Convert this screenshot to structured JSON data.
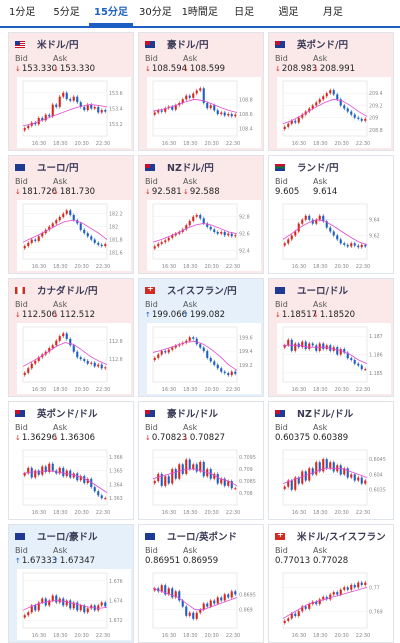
{
  "tabs": [
    {
      "label": "1分足",
      "active": false
    },
    {
      "label": "5分足",
      "active": false
    },
    {
      "label": "15分足",
      "active": true
    },
    {
      "label": "30分足",
      "active": false
    },
    {
      "label": "1時間足",
      "active": false
    },
    {
      "label": "日足",
      "active": false
    },
    {
      "label": "週足",
      "active": false
    },
    {
      "label": "月足",
      "active": false
    }
  ],
  "labels": {
    "bid": "Bid",
    "ask": "Ask"
  },
  "colors": {
    "up": "#d9261c",
    "down": "#1e5fc4",
    "ma": "#e04bd3",
    "axis": "#888888",
    "accent": "#1e5fc4"
  },
  "cards": [
    {
      "name": "米ドル/円",
      "flag": "us",
      "tint": "red",
      "bid": "153.330",
      "ask": "153.330",
      "bid_dir": "down",
      "ask_dir": "down",
      "chart_data": {
        "type": "candlestick",
        "x_ticks": [
          "16:30",
          "18:30",
          "20:30",
          "22:30"
        ],
        "y_ticks": [
          "153.6",
          "153.4",
          "153.2"
        ],
        "ylim": [
          153.05,
          153.75
        ],
        "closes": [
          153.15,
          153.18,
          153.22,
          153.2,
          153.28,
          153.25,
          153.32,
          153.3,
          153.45,
          153.42,
          153.55,
          153.6,
          153.52,
          153.5,
          153.55,
          153.48,
          153.42,
          153.38,
          153.45,
          153.4,
          153.42,
          153.35,
          153.38,
          153.36
        ],
        "ma": [
          153.18,
          153.2,
          153.24,
          153.28,
          153.32,
          153.36,
          153.4,
          153.43,
          153.45,
          153.44,
          153.42
        ]
      }
    },
    {
      "name": "豪ドル/円",
      "flag": "au",
      "tint": "red",
      "bid": "108.594",
      "ask": "108.599",
      "bid_dir": "down",
      "ask_dir": "down",
      "chart_data": {
        "type": "candlestick",
        "x_ticks": [
          "16:30",
          "18:30",
          "20:30",
          "22:30"
        ],
        "y_ticks": [
          "108.8",
          "108.6",
          "108.4"
        ],
        "ylim": [
          108.3,
          109.05
        ],
        "closes": [
          108.62,
          108.65,
          108.63,
          108.68,
          108.7,
          108.66,
          108.72,
          108.75,
          108.8,
          108.85,
          108.82,
          108.88,
          108.92,
          108.95,
          108.75,
          108.68,
          108.72,
          108.65,
          108.6,
          108.62,
          108.58,
          108.6,
          108.57,
          108.59
        ],
        "ma": [
          108.64,
          108.66,
          108.69,
          108.73,
          108.77,
          108.8,
          108.78,
          108.74,
          108.69,
          108.65,
          108.62
        ]
      }
    },
    {
      "name": "英ポンド/円",
      "flag": "gb",
      "tint": "red",
      "bid": "208.983",
      "ask": "208.991",
      "bid_dir": "down",
      "ask_dir": "down",
      "chart_data": {
        "type": "candlestick",
        "x_ticks": [
          "16:30",
          "18:30",
          "20:30",
          "22:30"
        ],
        "y_ticks": [
          "209.4",
          "209.2",
          "209",
          "208.8"
        ],
        "ylim": [
          208.7,
          209.6
        ],
        "closes": [
          208.85,
          208.9,
          208.95,
          208.92,
          209.0,
          209.05,
          209.1,
          209.15,
          209.2,
          209.25,
          209.3,
          209.35,
          209.4,
          209.45,
          209.38,
          209.3,
          209.2,
          209.15,
          209.1,
          209.05,
          209.0,
          208.98,
          208.95,
          208.98
        ],
        "ma": [
          208.9,
          208.95,
          209.02,
          209.1,
          209.18,
          209.25,
          209.3,
          209.28,
          209.2,
          209.1,
          209.02
        ]
      }
    },
    {
      "name": "ユーロ/円",
      "flag": "eu",
      "tint": "red",
      "bid": "181.726",
      "ask": "181.730",
      "bid_dir": "down",
      "ask_dir": "down",
      "chart_data": {
        "type": "candlestick",
        "x_ticks": [
          "16:30",
          "18:30",
          "20:30",
          "22:30"
        ],
        "y_ticks": [
          "182.2",
          "182",
          "181.8",
          "181.6"
        ],
        "ylim": [
          181.5,
          182.35
        ],
        "closes": [
          181.7,
          181.75,
          181.8,
          181.78,
          181.85,
          181.9,
          181.95,
          182.0,
          182.05,
          182.1,
          182.15,
          182.2,
          182.25,
          182.18,
          182.1,
          182.05,
          181.95,
          181.9,
          181.85,
          181.8,
          181.75,
          181.72,
          181.7,
          181.73
        ],
        "ma": [
          181.76,
          181.82,
          181.88,
          181.95,
          182.02,
          182.08,
          182.1,
          182.06,
          181.98,
          181.9,
          181.8
        ]
      }
    },
    {
      "name": "NZドル/円",
      "flag": "nz",
      "tint": "red",
      "bid": "92.581",
      "ask": "92.588",
      "bid_dir": "down",
      "ask_dir": "down",
      "chart_data": {
        "type": "candlestick",
        "x_ticks": [
          "16:30",
          "18:30",
          "20:30",
          "22:30"
        ],
        "y_ticks": [
          "92.8",
          "92.6",
          "92.4"
        ],
        "ylim": [
          92.3,
          92.95
        ],
        "closes": [
          92.45,
          92.48,
          92.5,
          92.52,
          92.55,
          92.58,
          92.6,
          92.62,
          92.65,
          92.7,
          92.75,
          92.8,
          92.82,
          92.78,
          92.72,
          92.68,
          92.65,
          92.62,
          92.6,
          92.62,
          92.58,
          92.6,
          92.57,
          92.58
        ],
        "ma": [
          92.5,
          92.53,
          92.57,
          92.61,
          92.66,
          92.7,
          92.72,
          92.7,
          92.66,
          92.62,
          92.6
        ]
      }
    },
    {
      "name": "ランド/円",
      "flag": "za",
      "tint": "plain",
      "bid": "9.605",
      "ask": "9.614",
      "bid_dir": "none",
      "ask_dir": "none",
      "chart_data": {
        "type": "candlestick",
        "x_ticks": [
          "16:30",
          "18:30",
          "20:30",
          "22:30"
        ],
        "y_ticks": [
          "9.64",
          "9.62"
        ],
        "ylim": [
          9.59,
          9.66
        ],
        "closes": [
          9.61,
          9.615,
          9.62,
          9.625,
          9.635,
          9.64,
          9.645,
          9.64,
          9.635,
          9.64,
          9.645,
          9.638,
          9.63,
          9.625,
          9.62,
          9.615,
          9.61,
          9.608,
          9.606,
          9.61,
          9.607,
          9.605,
          9.608,
          9.606
        ],
        "ma": [
          9.615,
          9.622,
          9.63,
          9.636,
          9.64,
          9.638,
          9.632,
          9.625,
          9.618,
          9.612,
          9.608
        ]
      }
    },
    {
      "name": "カナダドル/円",
      "flag": "ca",
      "tint": "red",
      "bid": "112.506",
      "ask": "112.512",
      "bid_dir": "down",
      "ask_dir": "down",
      "chart_data": {
        "type": "candlestick",
        "x_ticks": [
          "16:30",
          "18:30",
          "20:30",
          "22:30"
        ],
        "y_ticks": [
          "112.8",
          "112.6"
        ],
        "ylim": [
          112.35,
          112.95
        ],
        "closes": [
          112.45,
          112.5,
          112.55,
          112.58,
          112.62,
          112.65,
          112.68,
          112.72,
          112.75,
          112.8,
          112.85,
          112.88,
          112.82,
          112.75,
          112.68,
          112.62,
          112.6,
          112.58,
          112.55,
          112.56,
          112.52,
          112.54,
          112.5,
          112.51
        ],
        "ma": [
          112.52,
          112.57,
          112.62,
          112.68,
          112.74,
          112.78,
          112.76,
          112.7,
          112.63,
          112.58,
          112.54
        ]
      }
    },
    {
      "name": "スイスフラン/円",
      "flag": "ch",
      "tint": "blue",
      "bid": "199.066",
      "ask": "199.082",
      "bid_dir": "up",
      "ask_dir": "up",
      "chart_data": {
        "type": "candlestick",
        "x_ticks": [
          "16:30",
          "18:30",
          "20:30",
          "22:30"
        ],
        "y_ticks": [
          "199.6",
          "199.4",
          "199.2"
        ],
        "ylim": [
          198.95,
          199.75
        ],
        "closes": [
          199.3,
          199.35,
          199.4,
          199.38,
          199.42,
          199.45,
          199.48,
          199.5,
          199.52,
          199.55,
          199.6,
          199.58,
          199.5,
          199.45,
          199.4,
          199.3,
          199.25,
          199.2,
          199.15,
          199.1,
          199.08,
          199.05,
          199.1,
          199.07
        ],
        "ma": [
          199.38,
          199.41,
          199.45,
          199.49,
          199.53,
          199.54,
          199.5,
          199.42,
          199.32,
          199.2,
          199.12
        ]
      }
    },
    {
      "name": "ユーロ/ドル",
      "flag": "eu",
      "tint": "red",
      "bid": "1.18517",
      "ask": "1.18520",
      "bid_dir": "down",
      "ask_dir": "down",
      "chart_data": {
        "type": "candlestick",
        "x_ticks": [
          "16:30",
          "18:30",
          "20:30",
          "22:30"
        ],
        "y_ticks": [
          "1.187",
          "1.186",
          "1.185"
        ],
        "ylim": [
          1.1845,
          1.1875
        ],
        "closes": [
          1.1865,
          1.1868,
          1.1862,
          1.1866,
          1.1864,
          1.1867,
          1.1863,
          1.1866,
          1.1865,
          1.1862,
          1.1866,
          1.1863,
          1.1865,
          1.1862,
          1.1864,
          1.186,
          1.1863,
          1.1861,
          1.1858,
          1.1857,
          1.1855,
          1.1854,
          1.1852,
          1.1852
        ],
        "ma": [
          1.1865,
          1.1865,
          1.1865,
          1.1864,
          1.1864,
          1.1864,
          1.1863,
          1.1862,
          1.186,
          1.1857,
          1.1855
        ]
      }
    },
    {
      "name": "英ポンド/ドル",
      "flag": "gb",
      "tint": "plain",
      "bid": "1.36296",
      "ask": "1.36306",
      "bid_dir": "down",
      "ask_dir": "down",
      "chart_data": {
        "type": "candlestick",
        "x_ticks": [
          "16:30",
          "18:30",
          "20:30",
          "22:30"
        ],
        "y_ticks": [
          "1.366",
          "1.365",
          "1.364",
          "1.363"
        ],
        "ylim": [
          1.3625,
          1.3665
        ],
        "closes": [
          1.3648,
          1.3652,
          1.3645,
          1.365,
          1.3647,
          1.3653,
          1.3649,
          1.3655,
          1.365,
          1.3648,
          1.3652,
          1.3646,
          1.365,
          1.3645,
          1.3648,
          1.3643,
          1.3646,
          1.3641,
          1.3644,
          1.3638,
          1.3635,
          1.3632,
          1.363,
          1.363
        ],
        "ma": [
          1.3648,
          1.3649,
          1.3649,
          1.365,
          1.3649,
          1.3648,
          1.3647,
          1.3645,
          1.3642,
          1.3638,
          1.3634
        ]
      }
    },
    {
      "name": "豪ドル/ドル",
      "flag": "au",
      "tint": "plain",
      "bid": "0.70823",
      "ask": "0.70827",
      "bid_dir": "down",
      "ask_dir": "down",
      "chart_data": {
        "type": "candlestick",
        "x_ticks": [
          "16:30",
          "18:30",
          "20:30",
          "22:30"
        ],
        "y_ticks": [
          "0.7095",
          "0.709",
          "0.7085",
          "0.708"
        ],
        "ylim": [
          0.7075,
          0.7098
        ],
        "closes": [
          0.7085,
          0.7088,
          0.7083,
          0.7087,
          0.7084,
          0.709,
          0.7086,
          0.7092,
          0.7088,
          0.7094,
          0.709,
          0.7092,
          0.7089,
          0.7093,
          0.7087,
          0.709,
          0.7086,
          0.7088,
          0.7084,
          0.7086,
          0.7083,
          0.7085,
          0.7082,
          0.7082
        ],
        "ma": [
          0.7086,
          0.7087,
          0.7088,
          0.7089,
          0.709,
          0.709,
          0.7089,
          0.7088,
          0.7086,
          0.7085,
          0.7083
        ]
      }
    },
    {
      "name": "NZドル/ドル",
      "flag": "nz",
      "tint": "plain",
      "bid": "0.60375",
      "ask": "0.60389",
      "bid_dir": "none",
      "ask_dir": "none",
      "chart_data": {
        "type": "candlestick",
        "x_ticks": [
          "16:30",
          "18:30",
          "20:30",
          "22:30"
        ],
        "y_ticks": [
          "0.6045",
          "0.604",
          "0.6035"
        ],
        "ylim": [
          0.603,
          0.6048
        ],
        "closes": [
          0.6036,
          0.6038,
          0.6035,
          0.6039,
          0.6037,
          0.6041,
          0.6038,
          0.6042,
          0.604,
          0.6044,
          0.6041,
          0.6045,
          0.6042,
          0.6044,
          0.6041,
          0.6043,
          0.604,
          0.6042,
          0.6039,
          0.604,
          0.6038,
          0.6039,
          0.6037,
          0.6038
        ],
        "ma": [
          0.6037,
          0.6038,
          0.6039,
          0.604,
          0.6041,
          0.6042,
          0.6042,
          0.6042,
          0.6041,
          0.604,
          0.6039
        ]
      }
    },
    {
      "name": "ユーロ/豪ドル",
      "flag": "eu",
      "tint": "blue",
      "bid": "1.67333",
      "ask": "1.67347",
      "bid_dir": "up",
      "ask_dir": "up",
      "chart_data": {
        "type": "candlestick",
        "x_ticks": [
          "16:30",
          "18:30",
          "20:30",
          "22:30"
        ],
        "y_ticks": [
          "1.676",
          "1.674",
          "1.672"
        ],
        "ylim": [
          1.6712,
          1.6768
        ],
        "closes": [
          1.6725,
          1.6728,
          1.6735,
          1.673,
          1.6738,
          1.6742,
          1.6735,
          1.674,
          1.6745,
          1.6738,
          1.6742,
          1.6735,
          1.674,
          1.6732,
          1.6738,
          1.673,
          1.6735,
          1.6728,
          1.6732,
          1.6735,
          1.673,
          1.6735,
          1.6738,
          1.6734
        ],
        "ma": [
          1.673,
          1.6734,
          1.6737,
          1.6739,
          1.674,
          1.6739,
          1.6737,
          1.6735,
          1.6733,
          1.6732,
          1.6733
        ]
      }
    },
    {
      "name": "ユーロ/英ポンド",
      "flag": "eu",
      "tint": "plain",
      "bid": "0.86951",
      "ask": "0.86959",
      "bid_dir": "none",
      "ask_dir": "none",
      "chart_data": {
        "type": "candlestick",
        "x_ticks": [
          "16:30",
          "18:30",
          "20:30",
          "22:30"
        ],
        "y_ticks": [
          "0.8695",
          "0.869"
        ],
        "ylim": [
          0.8684,
          0.8702
        ],
        "closes": [
          0.8697,
          0.8696,
          0.8698,
          0.8695,
          0.8697,
          0.8694,
          0.8696,
          0.8693,
          0.8691,
          0.8688,
          0.8689,
          0.8687,
          0.8689,
          0.869,
          0.8692,
          0.8691,
          0.8693,
          0.8692,
          0.8694,
          0.8693,
          0.8695,
          0.8694,
          0.8696,
          0.8695
        ],
        "ma": [
          0.8697,
          0.8696,
          0.8695,
          0.8694,
          0.8692,
          0.869,
          0.869,
          0.8691,
          0.8692,
          0.8693,
          0.8694
        ]
      }
    },
    {
      "name": "米ドル/スイスフラン",
      "flag": "ch",
      "tint": "plain",
      "bid": "0.77013",
      "ask": "0.77028",
      "bid_dir": "none",
      "ask_dir": "none",
      "chart_data": {
        "type": "candlestick",
        "x_ticks": [
          "16:30",
          "18:30",
          "20:30",
          "22:30"
        ],
        "y_ticks": [
          "0.77",
          "0.769"
        ],
        "ylim": [
          0.7683,
          0.7706
        ],
        "closes": [
          0.7686,
          0.7687,
          0.7689,
          0.7688,
          0.769,
          0.7692,
          0.7691,
          0.7693,
          0.7694,
          0.7693,
          0.7695,
          0.7696,
          0.7695,
          0.7697,
          0.7698,
          0.7697,
          0.7699,
          0.77,
          0.7699,
          0.7701,
          0.77,
          0.7702,
          0.7701,
          0.7702
        ],
        "ma": [
          0.7687,
          0.7689,
          0.7691,
          0.7693,
          0.7694,
          0.7695,
          0.7696,
          0.7697,
          0.7698,
          0.7699,
          0.77
        ]
      }
    }
  ]
}
